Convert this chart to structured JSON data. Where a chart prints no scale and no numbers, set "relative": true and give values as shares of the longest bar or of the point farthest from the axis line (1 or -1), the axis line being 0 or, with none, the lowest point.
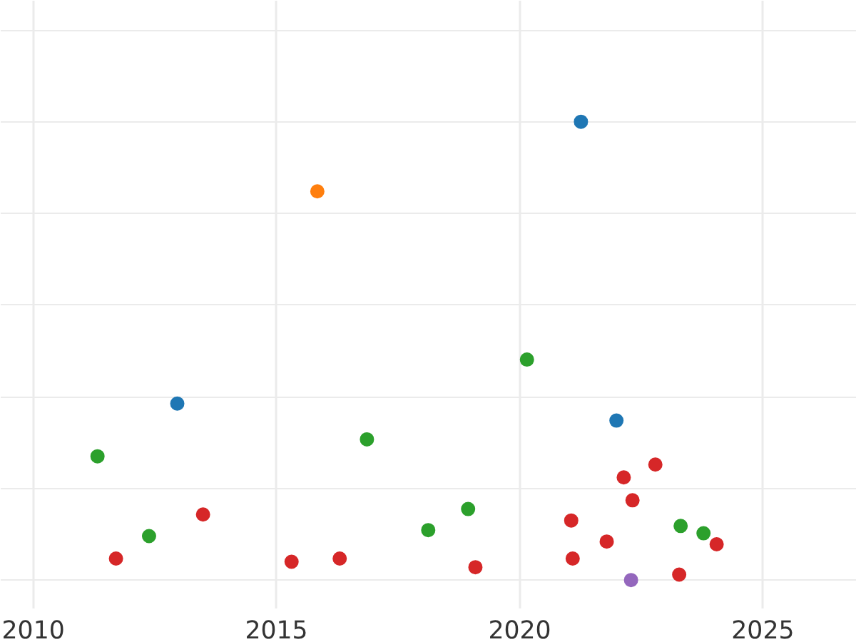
{
  "chart_data": {
    "type": "scatter",
    "relative": true,
    "marker": "circle",
    "grid": true,
    "xlim": [
      2009.33,
      2026.93
    ],
    "xticks": [
      2010,
      2015,
      2020,
      2025
    ],
    "series": [
      {
        "color": "#1f77b4",
        "x": [
          2021.26,
          2012.96,
          2021.99
        ],
        "values": [
          1.0,
          0.385,
          0.348
        ]
      },
      {
        "color": "#ff7f0e",
        "x": [
          2015.84
        ],
        "values": [
          0.848
        ]
      },
      {
        "color": "#2ca02c",
        "x": [
          2011.32,
          2012.38,
          2016.86,
          2018.12,
          2018.94,
          2020.15,
          2023.31,
          2023.78
        ],
        "values": [
          0.27,
          0.096,
          0.307,
          0.109,
          0.155,
          0.481,
          0.118,
          0.102
        ]
      },
      {
        "color": "#d62728",
        "x": [
          2011.7,
          2013.49,
          2015.31,
          2016.3,
          2019.09,
          2021.06,
          2021.09,
          2021.79,
          2022.14,
          2022.32,
          2022.79,
          2023.28,
          2024.05
        ],
        "values": [
          0.047,
          0.143,
          0.04,
          0.047,
          0.028,
          0.13,
          0.047,
          0.084,
          0.224,
          0.174,
          0.252,
          0.012,
          0.078
        ]
      },
      {
        "color": "#9467bd",
        "x": [
          2022.29
        ],
        "values": [
          0.0
        ]
      }
    ]
  }
}
